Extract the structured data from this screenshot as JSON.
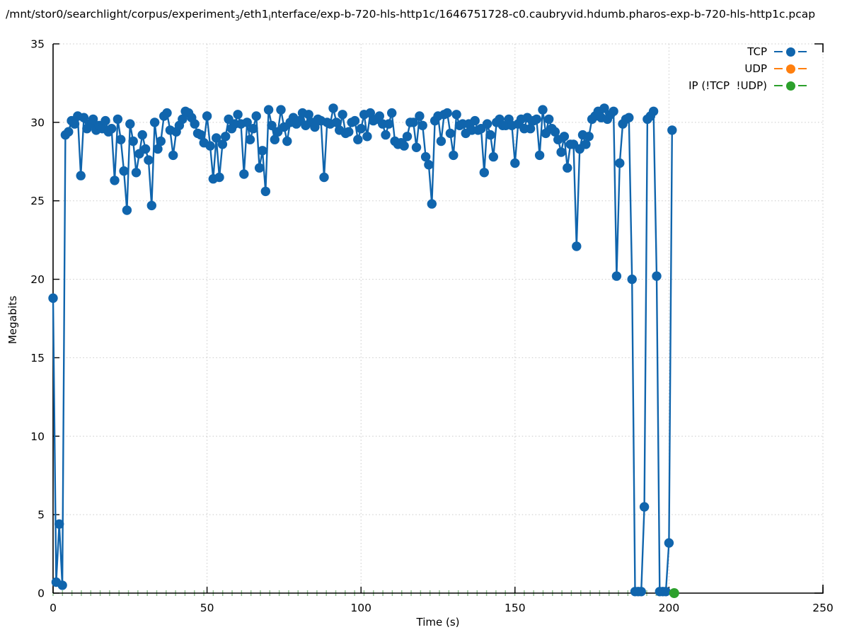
{
  "title": {
    "parts": [
      {
        "text": "/mnt/stor0/searchlight/corpus/experiment",
        "sub": false
      },
      {
        "text": "3",
        "sub": true
      },
      {
        "text": "/eth1",
        "sub": false
      },
      {
        "text": "i",
        "sub": true
      },
      {
        "text": "nterface/exp-b-720-hls-http1c/1646751728-c0.caubryvid.hdumb.pharos-exp-b-720-hls-http1c.pcap",
        "sub": false
      }
    ]
  },
  "axes": {
    "x_label": "Time (s)",
    "y_label": "Megabits",
    "x_ticks": [
      0,
      50,
      100,
      150,
      200,
      250
    ],
    "y_ticks": [
      0,
      5,
      10,
      15,
      20,
      25,
      30,
      35
    ],
    "x_range": [
      0,
      250
    ],
    "y_range": [
      0,
      35
    ]
  },
  "legend": [
    {
      "label": "TCP",
      "color": "#1065ad"
    },
    {
      "label": "UDP",
      "color": "#ff7f0e"
    },
    {
      "label": "IP (!TCP  !UDP)",
      "color": "#2ca02c"
    }
  ],
  "colors": {
    "tcp": "#1065ad",
    "udp": "#ff7f0e",
    "ip_other": "#2ca02c",
    "grid": "#c9c9c9",
    "axis": "#000000",
    "baseline_marks": "#8fbf8f"
  },
  "chart_data": {
    "type": "line",
    "xlabel": "Time (s)",
    "ylabel": "Megabits",
    "xlim": [
      0,
      250
    ],
    "ylim": [
      0,
      35
    ],
    "grid": true,
    "legend_position": "top-right",
    "series": [
      {
        "name": "TCP",
        "color": "#1065ad",
        "marker": "circle",
        "x_start": 0,
        "x_step": 1,
        "values": [
          18.8,
          0.7,
          4.4,
          0.5,
          29.2,
          29.4,
          30.1,
          29.9,
          30.4,
          26.6,
          30.3,
          29.6,
          29.9,
          30.2,
          29.5,
          29.8,
          29.6,
          30.1,
          29.4,
          29.6,
          26.3,
          30.2,
          28.9,
          26.9,
          24.4,
          29.9,
          28.8,
          26.8,
          28.0,
          29.2,
          28.3,
          27.6,
          24.7,
          30.0,
          28.3,
          28.8,
          30.4,
          30.6,
          29.5,
          27.9,
          29.4,
          29.8,
          30.2,
          30.7,
          30.6,
          30.3,
          29.9,
          29.3,
          29.2,
          28.7,
          30.4,
          28.5,
          26.4,
          29.0,
          26.5,
          28.6,
          29.1,
          30.2,
          29.6,
          29.9,
          30.5,
          29.9,
          26.7,
          30.0,
          28.9,
          29.6,
          30.4,
          27.1,
          28.2,
          25.6,
          30.8,
          29.8,
          28.9,
          29.4,
          30.8,
          29.7,
          28.8,
          30.0,
          30.3,
          29.9,
          30.1,
          30.6,
          29.8,
          30.5,
          30.0,
          29.7,
          30.2,
          30.1,
          26.5,
          30.0,
          29.9,
          30.9,
          30.0,
          29.5,
          30.5,
          29.3,
          29.4,
          30.0,
          30.1,
          28.9,
          29.6,
          30.5,
          29.1,
          30.6,
          30.1,
          30.2,
          30.4,
          29.9,
          29.2,
          29.9,
          30.6,
          28.8,
          28.6,
          28.7,
          28.5,
          29.1,
          30.0,
          30.0,
          28.4,
          30.4,
          29.8,
          27.8,
          27.3,
          24.8,
          30.1,
          30.4,
          28.8,
          30.5,
          30.6,
          29.3,
          27.9,
          30.5,
          29.8,
          29.9,
          29.3,
          29.9,
          29.5,
          30.1,
          29.5,
          29.6,
          26.8,
          29.9,
          29.2,
          27.8,
          30.0,
          30.2,
          29.8,
          29.8,
          30.2,
          29.8,
          27.4,
          29.9,
          30.2,
          29.6,
          30.3,
          29.6,
          30.1,
          30.2,
          27.9,
          30.8,
          29.3,
          30.2,
          29.6,
          29.4,
          28.9,
          28.1,
          29.1,
          27.1,
          28.6,
          28.6,
          22.1,
          28.3,
          29.2,
          28.6,
          29.1,
          30.2,
          30.4,
          30.7,
          30.3,
          30.9,
          30.2,
          30.5,
          30.7,
          20.2,
          27.4,
          29.9,
          30.2,
          30.3,
          20.0,
          0.1,
          0.1,
          0.1,
          5.5,
          30.2,
          30.4,
          30.7,
          20.2,
          0.1,
          0.1,
          0.1,
          3.2,
          29.5
        ]
      },
      {
        "name": "UDP",
        "color": "#ff7f0e",
        "marker": "circle",
        "values": []
      },
      {
        "name": "IP (!TCP  !UDP)",
        "color": "#2ca02c",
        "marker": "circle",
        "points": [
          [
            201.7,
            0
          ]
        ],
        "baseline_marks": {
          "x_start": 0,
          "x_end": 201.6,
          "interval": 3.06,
          "y": 0
        }
      }
    ]
  }
}
